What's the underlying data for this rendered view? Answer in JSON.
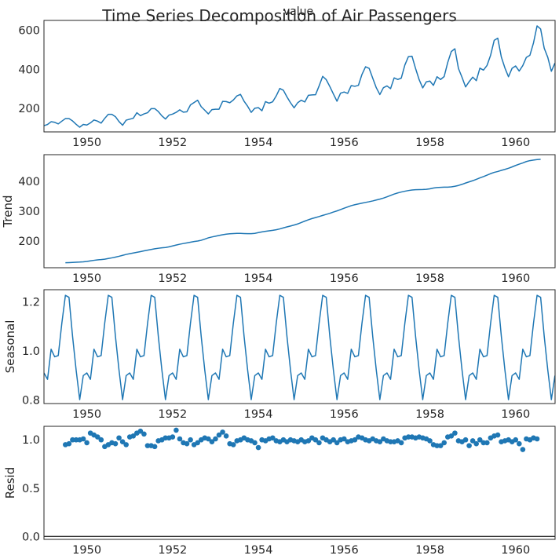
{
  "figure": {
    "title": "Time Series Decomposition of Air Passengers",
    "subtitle": "value"
  },
  "chart_data": [
    {
      "type": "line",
      "name": "observed",
      "title": "value",
      "xlabel": "",
      "ylabel": "",
      "x_start": 1949.0,
      "x_step": 0.0833333,
      "xlim": [
        1949.0,
        1960.92
      ],
      "ylim": [
        80,
        650
      ],
      "xticks": [
        1950,
        1952,
        1954,
        1956,
        1958,
        1960
      ],
      "xtick_labels": [
        "1950",
        "1952",
        "1954",
        "1956",
        "1958",
        "1960"
      ],
      "yticks": [
        200,
        400,
        600
      ],
      "ytick_labels": [
        "200",
        "400",
        "600"
      ],
      "grid": false,
      "series": [
        {
          "values": [
            112,
            118,
            132,
            129,
            121,
            135,
            148,
            148,
            136,
            119,
            104,
            118,
            115,
            126,
            141,
            135,
            125,
            149,
            170,
            170,
            158,
            133,
            114,
            140,
            145,
            150,
            178,
            163,
            172,
            178,
            199,
            199,
            184,
            162,
            146,
            166,
            171,
            180,
            193,
            181,
            183,
            218,
            230,
            242,
            209,
            191,
            172,
            194,
            196,
            196,
            236,
            235,
            229,
            243,
            264,
            272,
            237,
            211,
            180,
            201,
            204,
            188,
            235,
            227,
            234,
            264,
            302,
            293,
            259,
            229,
            203,
            229,
            242,
            233,
            267,
            269,
            270,
            315,
            364,
            347,
            312,
            274,
            237,
            278,
            284,
            277,
            317,
            313,
            318,
            374,
            413,
            405,
            355,
            306,
            271,
            306,
            315,
            301,
            356,
            348,
            355,
            422,
            465,
            467,
            404,
            347,
            305,
            336,
            340,
            318,
            362,
            348,
            363,
            435,
            491,
            505,
            404,
            359,
            310,
            337,
            360,
            342,
            406,
            396,
            420,
            472,
            548,
            559,
            463,
            407,
            362,
            405,
            417,
            391,
            419,
            461,
            472,
            535,
            622,
            606,
            508,
            461,
            390,
            432
          ]
        }
      ]
    },
    {
      "type": "line",
      "name": "trend",
      "xlabel": "",
      "ylabel": "Trend",
      "x_start": 1949.5,
      "x_step": 0.0833333,
      "xlim": [
        1949.0,
        1960.92
      ],
      "ylim": [
        110,
        490
      ],
      "xticks": [
        1950,
        1952,
        1954,
        1956,
        1958,
        1960
      ],
      "xtick_labels": [
        "1950",
        "1952",
        "1954",
        "1956",
        "1958",
        "1960"
      ],
      "yticks": [
        200,
        300,
        400
      ],
      "ytick_labels": [
        "200",
        "300",
        "400"
      ],
      "grid": false,
      "series": [
        {
          "values": [
            126.79,
            127.25,
            127.96,
            128.58,
            129.0,
            129.75,
            131.25,
            133.08,
            134.92,
            136.42,
            137.42,
            138.75,
            140.92,
            143.17,
            145.71,
            148.42,
            151.54,
            154.71,
            157.12,
            159.54,
            161.83,
            164.12,
            166.67,
            169.08,
            171.25,
            173.58,
            175.46,
            176.83,
            178.04,
            180.17,
            183.12,
            186.21,
            189.04,
            191.29,
            193.58,
            195.83,
            198.04,
            199.75,
            202.21,
            206.25,
            210.42,
            213.38,
            215.83,
            218.5,
            220.92,
            222.92,
            224.08,
            224.71,
            225.33,
            225.33,
            224.96,
            224.58,
            224.46,
            225.54,
            228.0,
            230.46,
            232.25,
            233.92,
            235.62,
            237.75,
            240.5,
            243.96,
            247.17,
            250.25,
            253.5,
            257.12,
            261.83,
            266.67,
            271.12,
            275.21,
            278.5,
            281.96,
            285.75,
            289.33,
            292.96,
            297.17,
            301.0,
            305.46,
            309.96,
            314.42,
            318.62,
            321.75,
            324.5,
            327.08,
            329.54,
            331.83,
            334.46,
            337.54,
            340.54,
            344.08,
            348.25,
            353.0,
            357.62,
            361.38,
            364.5,
            367.17,
            369.46,
            371.21,
            372.17,
            372.42,
            372.75,
            373.62,
            375.25,
            377.92,
            379.5,
            380.0,
            380.71,
            380.96,
            381.83,
            383.67,
            386.5,
            390.33,
            394.71,
            398.62,
            402.54,
            407.17,
            411.87,
            416.33,
            421.25,
            426.33,
            430.5,
            433.42,
            437.17,
            440.58,
            444.33,
            448.79,
            453.71,
            458.08,
            462.17,
            466.92,
            470.0,
            471.92,
            473.5,
            474.5
          ]
        }
      ]
    },
    {
      "type": "line",
      "name": "seasonal",
      "xlabel": "",
      "ylabel": "Seasonal",
      "x_start": 1949.0,
      "x_step": 0.0833333,
      "xlim": [
        1949.0,
        1960.92
      ],
      "ylim": [
        0.785,
        1.25
      ],
      "xticks": [
        1950,
        1952,
        1954,
        1956,
        1958,
        1960
      ],
      "xtick_labels": [
        "1950",
        "1952",
        "1954",
        "1956",
        "1958",
        "1960"
      ],
      "yticks": [
        0.8,
        1.0,
        1.2
      ],
      "ytick_labels": [
        "0.8",
        "1.0",
        "1.2"
      ],
      "grid": false,
      "series": [
        {
          "pattern": [
            0.91,
            0.884,
            1.007,
            0.976,
            0.981,
            1.113,
            1.227,
            1.219,
            1.06,
            0.922,
            0.801,
            0.899
          ],
          "cycles": 12
        }
      ]
    },
    {
      "type": "scatter",
      "name": "resid",
      "xlabel": "",
      "ylabel": "Resid",
      "x_start": 1949.5,
      "x_step": 0.0833333,
      "xlim": [
        1949.0,
        1960.92
      ],
      "ylim": [
        -0.03,
        1.14
      ],
      "xticks": [
        1950,
        1952,
        1954,
        1956,
        1958,
        1960
      ],
      "xtick_labels": [
        "1950",
        "1952",
        "1954",
        "1956",
        "1958",
        "1960"
      ],
      "yticks": [
        0.0,
        0.5,
        1.0
      ],
      "ytick_labels": [
        "0.0",
        "0.5",
        "1.0"
      ],
      "baseline": 0,
      "grid": false,
      "series": [
        {
          "values": [
            0.95,
            0.96,
            1.0,
            1.0,
            1.0,
            1.01,
            0.97,
            1.07,
            1.05,
            1.03,
            1.0,
            0.93,
            0.95,
            0.97,
            0.96,
            1.02,
            0.98,
            0.95,
            1.03,
            1.04,
            1.07,
            1.09,
            1.06,
            0.94,
            0.94,
            0.93,
            0.99,
            1.0,
            1.02,
            1.02,
            1.03,
            1.1,
            1.01,
            0.97,
            0.96,
            1.0,
            0.95,
            0.97,
            1.0,
            1.02,
            1.01,
            0.98,
            1.01,
            1.05,
            1.08,
            1.04,
            0.96,
            0.95,
            0.99,
            1.0,
            1.02,
            1.0,
            0.99,
            0.97,
            0.92,
            1.0,
            0.99,
            1.01,
            1.02,
            0.99,
            0.98,
            1.0,
            0.98,
            1.0,
            0.99,
            0.98,
            1.0,
            0.98,
            0.99,
            1.02,
            1.0,
            0.97,
            1.02,
            1.0,
            0.98,
            1.0,
            0.97,
            1.0,
            1.01,
            0.98,
            0.99,
            1.0,
            1.03,
            1.02,
            1.0,
            0.99,
            1.01,
            0.99,
            0.98,
            1.01,
            0.99,
            0.98,
            0.98,
            0.99,
            0.97,
            1.02,
            1.03,
            1.03,
            1.02,
            1.03,
            1.02,
            1.01,
            0.99,
            0.95,
            0.94,
            0.94,
            0.97,
            1.03,
            1.04,
            1.07,
            0.99,
            0.98,
            1.0,
            0.94,
            0.99,
            0.96,
            1.0,
            0.97,
            0.97,
            1.02,
            1.04,
            1.05,
            0.98,
            0.99,
            1.0,
            0.98,
            1.0,
            0.96,
            0.9,
            1.01,
            1.0,
            1.02,
            1.01
          ]
        }
      ]
    }
  ]
}
